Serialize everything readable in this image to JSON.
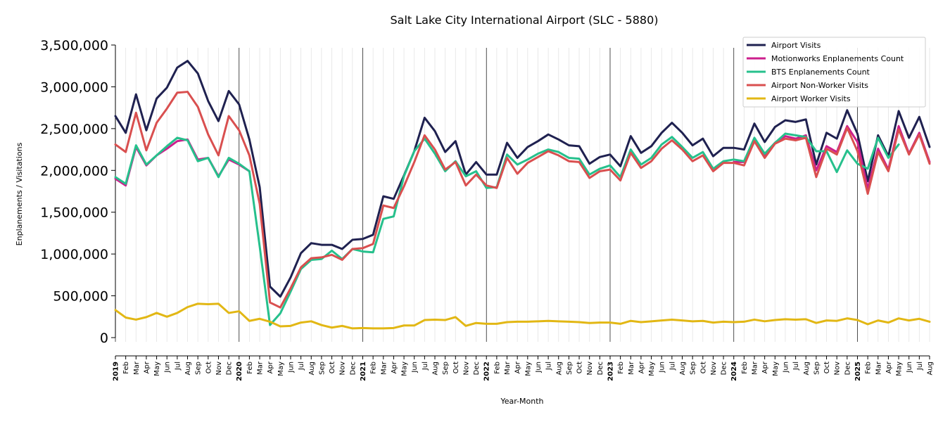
{
  "chart_data": {
    "type": "line",
    "title": "Salt Lake City International Airport (SLC - 5880)",
    "xlabel": "Year-Month",
    "ylabel": "Enplanements / Visitations",
    "ylim": [
      0,
      3500000
    ],
    "yticks": [
      "0",
      "500,000",
      "1,000,000",
      "1,500,000",
      "2,000,000",
      "2,500,000",
      "3,000,000",
      "3,500,000"
    ],
    "ytick_values": [
      0,
      500000,
      1000000,
      1500000,
      2000000,
      2500000,
      3000000,
      3500000
    ],
    "x": [
      "2019",
      "Feb",
      "Mar",
      "Apr",
      "May",
      "Jun",
      "Jul",
      "Aug",
      "Sep",
      "Oct",
      "Nov",
      "Dec",
      "2020",
      "Feb",
      "Mar",
      "Apr",
      "May",
      "Jun",
      "Jul",
      "Aug",
      "Sep",
      "Oct",
      "Nov",
      "Dec",
      "2021",
      "Feb",
      "Mar",
      "Apr",
      "May",
      "Jun",
      "Jul",
      "Aug",
      "Sep",
      "Oct",
      "Nov",
      "Dec",
      "2022",
      "Feb",
      "Mar",
      "Apr",
      "May",
      "Jun",
      "Jul",
      "Aug",
      "Sep",
      "Oct",
      "Nov",
      "Dec",
      "2023",
      "Feb",
      "Mar",
      "Apr",
      "May",
      "Jun",
      "Jul",
      "Aug",
      "Sep",
      "Oct",
      "Nov",
      "Dec",
      "2024",
      "Feb",
      "Mar",
      "Apr",
      "May",
      "Jun",
      "Jul",
      "Aug",
      "Sep",
      "Oct",
      "Nov",
      "Dec",
      "2025",
      "Feb",
      "Mar",
      "Apr",
      "May",
      "Jun",
      "Jul",
      "Aug"
    ],
    "grid": "vertical",
    "legend_position": "top-right",
    "series": [
      {
        "name": "Airport Visits",
        "color": "#1f2150",
        "values": [
          2650000,
          2450000,
          2910000,
          2480000,
          2860000,
          2990000,
          3230000,
          3310000,
          3160000,
          2830000,
          2590000,
          2950000,
          2790000,
          2370000,
          1800000,
          610000,
          490000,
          720000,
          1010000,
          1130000,
          1110000,
          1110000,
          1060000,
          1170000,
          1180000,
          1230000,
          1690000,
          1660000,
          1940000,
          2230000,
          2630000,
          2470000,
          2220000,
          2350000,
          1950000,
          2100000,
          1950000,
          1950000,
          2330000,
          2150000,
          2280000,
          2350000,
          2430000,
          2370000,
          2300000,
          2290000,
          2080000,
          2160000,
          2190000,
          2050000,
          2410000,
          2210000,
          2290000,
          2450000,
          2570000,
          2450000,
          2300000,
          2380000,
          2170000,
          2270000,
          2270000,
          2250000,
          2560000,
          2340000,
          2520000,
          2600000,
          2580000,
          2610000,
          2070000,
          2450000,
          2380000,
          2720000,
          2440000,
          1870000,
          2420000,
          2170000,
          2710000,
          2390000,
          2640000,
          2280000
        ]
      },
      {
        "name": "Motionworks Enplanements Count",
        "color": "#cc1f8c",
        "values": [
          1900000,
          1820000,
          2280000,
          2060000,
          2180000,
          2260000,
          2350000,
          2370000,
          2130000,
          2150000,
          1930000,
          2130000,
          2070000,
          1990000,
          null,
          null,
          null,
          null,
          null,
          null,
          null,
          null,
          null,
          null,
          null,
          null,
          null,
          null,
          null,
          null,
          null,
          null,
          null,
          null,
          null,
          null,
          null,
          null,
          null,
          null,
          null,
          null,
          null,
          null,
          null,
          null,
          null,
          null,
          null,
          null,
          null,
          null,
          null,
          null,
          null,
          null,
          null,
          null,
          null,
          null,
          2100000,
          2100000,
          2350000,
          2170000,
          2330000,
          2410000,
          2380000,
          2420000,
          2000000,
          2290000,
          2220000,
          2530000,
          2340000,
          1780000,
          2260000,
          2010000,
          2530000,
          2200000,
          2450000,
          2100000
        ]
      },
      {
        "name": "BTS Enplanements Count",
        "color": "#26c08c",
        "values": [
          1920000,
          1840000,
          2300000,
          2070000,
          2180000,
          2290000,
          2390000,
          2360000,
          2110000,
          2150000,
          1920000,
          2150000,
          2080000,
          1990000,
          1090000,
          150000,
          290000,
          550000,
          820000,
          930000,
          940000,
          1040000,
          940000,
          1060000,
          1030000,
          1020000,
          1420000,
          1450000,
          1930000,
          2230000,
          2380000,
          2200000,
          1990000,
          2110000,
          1930000,
          1990000,
          1790000,
          1800000,
          2190000,
          2070000,
          2130000,
          2200000,
          2250000,
          2220000,
          2150000,
          2140000,
          1950000,
          2020000,
          2060000,
          1920000,
          2250000,
          2070000,
          2150000,
          2310000,
          2400000,
          2280000,
          2150000,
          2220000,
          2020000,
          2110000,
          2130000,
          2110000,
          2390000,
          2200000,
          2330000,
          2440000,
          2420000,
          2400000,
          2230000,
          2230000,
          1980000,
          2240000,
          2080000,
          2020000,
          2390000,
          2150000,
          2310000,
          null,
          null,
          null
        ]
      },
      {
        "name": "Airport Non-Worker Visits",
        "color": "#d94f4f",
        "values": [
          2310000,
          2220000,
          2690000,
          2240000,
          2570000,
          2740000,
          2930000,
          2940000,
          2760000,
          2430000,
          2180000,
          2650000,
          2480000,
          2180000,
          1600000,
          420000,
          360000,
          590000,
          840000,
          950000,
          960000,
          990000,
          930000,
          1060000,
          1070000,
          1120000,
          1580000,
          1550000,
          1810000,
          2100000,
          2420000,
          2250000,
          2010000,
          2100000,
          1820000,
          1950000,
          1820000,
          1790000,
          2150000,
          1960000,
          2090000,
          2160000,
          2230000,
          2180000,
          2110000,
          2100000,
          1910000,
          1990000,
          2010000,
          1880000,
          2210000,
          2030000,
          2110000,
          2260000,
          2360000,
          2250000,
          2110000,
          2180000,
          1990000,
          2090000,
          2090000,
          2060000,
          2350000,
          2150000,
          2320000,
          2380000,
          2360000,
          2390000,
          1920000,
          2260000,
          2190000,
          2510000,
          2230000,
          1720000,
          2220000,
          1990000,
          2490000,
          2190000,
          2430000,
          2080000
        ]
      },
      {
        "name": "Airport Worker Visits",
        "color": "#e2b714",
        "values": [
          330000,
          240000,
          215000,
          245000,
          295000,
          250000,
          295000,
          365000,
          405000,
          400000,
          405000,
          295000,
          315000,
          200000,
          225000,
          190000,
          135000,
          140000,
          180000,
          195000,
          150000,
          120000,
          140000,
          110000,
          115000,
          110000,
          110000,
          115000,
          145000,
          145000,
          210000,
          215000,
          210000,
          245000,
          140000,
          175000,
          165000,
          165000,
          185000,
          190000,
          190000,
          195000,
          200000,
          195000,
          190000,
          185000,
          175000,
          180000,
          180000,
          165000,
          200000,
          185000,
          195000,
          205000,
          215000,
          205000,
          195000,
          200000,
          180000,
          190000,
          185000,
          190000,
          215000,
          195000,
          210000,
          220000,
          215000,
          220000,
          175000,
          205000,
          200000,
          230000,
          210000,
          160000,
          205000,
          180000,
          230000,
          205000,
          225000,
          190000
        ]
      }
    ]
  }
}
